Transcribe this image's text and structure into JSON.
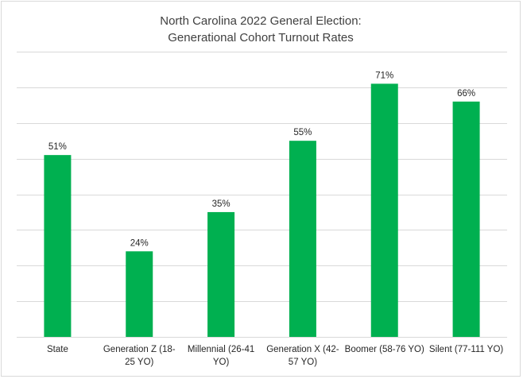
{
  "chart_data": {
    "type": "bar",
    "title": "North Carolina 2022 General Election:",
    "subtitle": "Generational Cohort Turnout Rates",
    "xlabel": "",
    "ylabel": "",
    "categories": [
      [
        "State"
      ],
      [
        "Generation Z (18-",
        "25 YO)"
      ],
      [
        "Millennial (26-41",
        "YO)"
      ],
      [
        "Generation X (42-",
        "57 YO)"
      ],
      [
        "Boomer (58-76 YO)"
      ],
      [
        "Silent (77-111 YO)"
      ]
    ],
    "values": [
      51,
      24,
      35,
      55,
      71,
      66
    ],
    "data_labels": [
      "51%",
      "24%",
      "35%",
      "55%",
      "71%",
      "66%"
    ],
    "ylim": [
      0,
      80
    ],
    "grid": true,
    "legend": "none",
    "bar_color": "#00b050",
    "grid_color": "#d9d9d9"
  }
}
